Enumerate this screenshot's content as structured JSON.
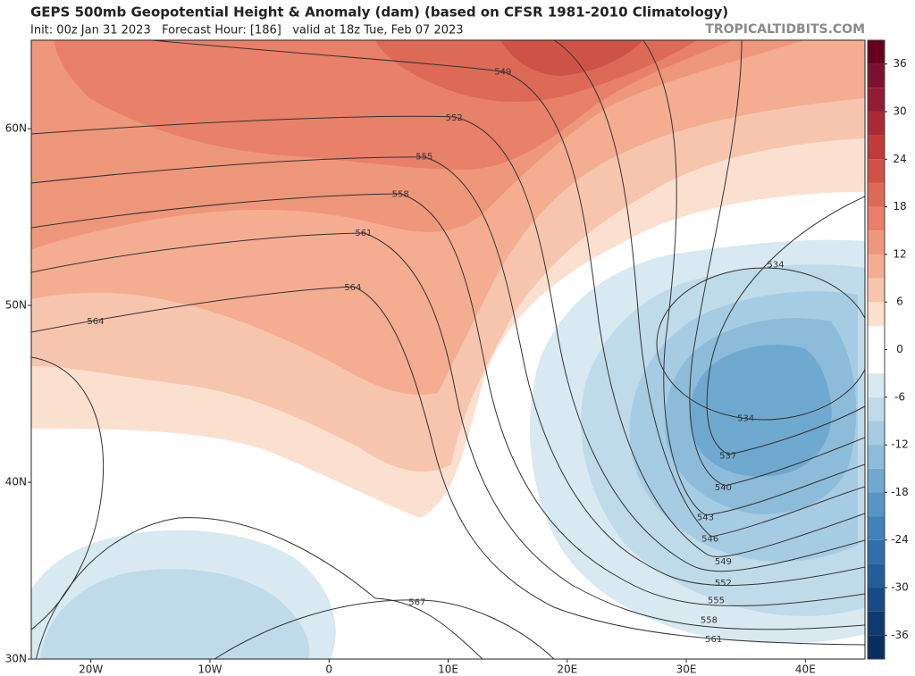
{
  "header": {
    "title": "GEPS 500mb Geopotential Height & Anomaly (dam) (based on CFSR 1981-2010 Climatology)",
    "subtitle": "Init: 00z Jan 31 2023   Forecast Hour: [186]   valid at 18z Tue, Feb 07 2023",
    "brand": "TROPICALTIDBITS.COM"
  },
  "map": {
    "type": "map",
    "xlim": [
      -25,
      45
    ],
    "ylim": [
      30,
      65
    ],
    "xticks": [
      {
        "value": -20,
        "label": "20W"
      },
      {
        "value": -10,
        "label": "10W"
      },
      0,
      {
        "value": 10,
        "label": "10E"
      },
      {
        "value": 20,
        "label": "20E"
      },
      {
        "value": 30,
        "label": "30E"
      },
      {
        "value": 40,
        "label": "40E"
      }
    ],
    "yticks": [
      {
        "value": 30,
        "label": "30N"
      },
      {
        "value": 40,
        "label": "40N"
      },
      {
        "value": 50,
        "label": "50N"
      },
      {
        "value": 60,
        "label": "60N"
      }
    ],
    "contour_labels": [
      {
        "value": 549,
        "lon": 14.6,
        "lat": 63.2
      },
      {
        "value": 552,
        "lon": 10.5,
        "lat": 60.6
      },
      {
        "value": 555,
        "lon": 8.0,
        "lat": 58.4
      },
      {
        "value": 558,
        "lon": 6.0,
        "lat": 56.3
      },
      {
        "value": 561,
        "lon": 2.9,
        "lat": 54.1
      },
      {
        "value": 564,
        "lon": 2.0,
        "lat": 51.0
      },
      {
        "value": 564,
        "lon": -19.6,
        "lat": 49.1
      },
      {
        "value": 534,
        "lon": 37.5,
        "lat": 52.3
      },
      {
        "value": 534,
        "lon": 35.0,
        "lat": 43.6
      },
      {
        "value": 537,
        "lon": 33.5,
        "lat": 41.5
      },
      {
        "value": 540,
        "lon": 33.1,
        "lat": 39.7
      },
      {
        "value": 543,
        "lon": 31.6,
        "lat": 38.0
      },
      {
        "value": 546,
        "lon": 32.0,
        "lat": 36.8
      },
      {
        "value": 549,
        "lon": 33.1,
        "lat": 35.5
      },
      {
        "value": 552,
        "lon": 33.1,
        "lat": 34.3
      },
      {
        "value": 555,
        "lon": 32.5,
        "lat": 33.3
      },
      {
        "value": 558,
        "lon": 31.9,
        "lat": 32.2
      },
      {
        "value": 561,
        "lon": 32.3,
        "lat": 31.1
      },
      {
        "value": 567,
        "lon": 7.4,
        "lat": 33.2
      }
    ],
    "colorbar": {
      "lim": [
        -39,
        39
      ],
      "ticks": [
        36,
        30,
        24,
        18,
        12,
        6,
        0,
        -6,
        -12,
        -18,
        -24,
        -30,
        -36
      ],
      "colors": [
        "#08305e",
        "#0e3a70",
        "#174b85",
        "#225e98",
        "#2f6faa",
        "#3f83ba",
        "#5596c6",
        "#6fa9d0",
        "#8cbcda",
        "#a6cce3",
        "#bfdbea",
        "#d8e9f2",
        "#ffffff",
        "#ffffff",
        "#fbe0d0",
        "#f7c5ae",
        "#f4ad91",
        "#ef977b",
        "#e8806a",
        "#dd6a57",
        "#cf5247",
        "#be3b3a",
        "#a82a36",
        "#921c33",
        "#7c1231",
        "#67001f"
      ]
    }
  }
}
